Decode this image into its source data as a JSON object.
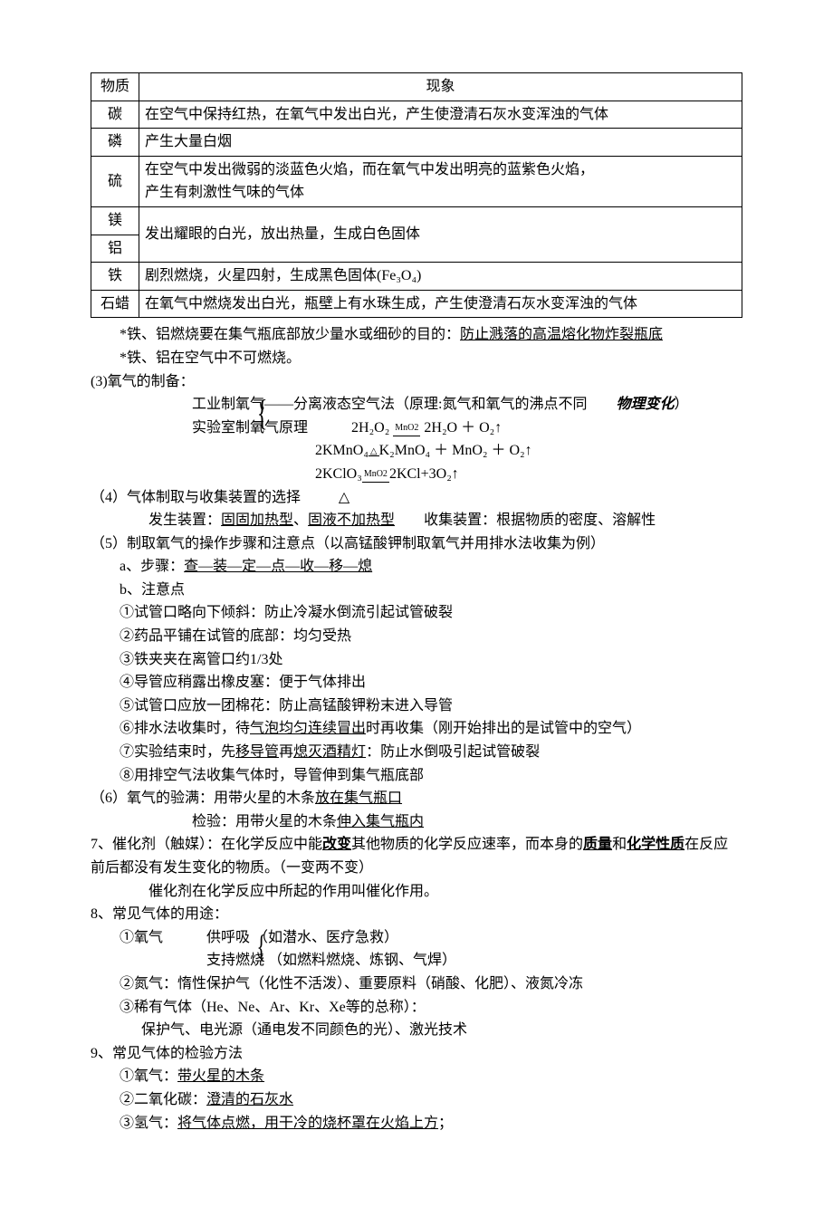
{
  "table": {
    "headers": [
      "物质",
      "现象"
    ],
    "rows": [
      {
        "m": "碳",
        "p": "在空气中保持红热，在氧气中发出白光，产生使澄清石灰水变浑浊的气体"
      },
      {
        "m": "磷",
        "p": "产生大量白烟"
      },
      {
        "m": "硫",
        "p": "在空气中发出微弱的淡蓝色火焰，而在氧气中发出明亮的蓝紫色火焰，\n产生有刺激性气味的气体"
      },
      {
        "m": "镁",
        "p": "发出耀眼的白光，放出热量，生成白色固体",
        "rowspan": 2
      },
      {
        "m": "铝"
      },
      {
        "m": "铁",
        "p": "剧烈燃烧，火星四射，生成黑色固体(Fe₃O₄)"
      },
      {
        "m": "石蜡",
        "p": "在氧气中燃烧发出白光，瓶壁上有水珠生成，产生使澄清石灰水变浑浊的气体"
      }
    ]
  },
  "notes": {
    "n1_pre": "*铁、铝燃烧要在集气瓶底部放少量水或细砂的目的：",
    "n1_u": "防止溅落的高温熔化物炸裂瓶底",
    "n2": "*铁、铝在空气中不可燃烧。"
  },
  "s3": {
    "title": "(3)氧气的制备：",
    "l1a": "工业制氧气——分离液态空气法（原理:氮气和氧气的沸点不同",
    "l1b": "物理变化",
    "l1c": "）",
    "l2a": "实验室制氧气原理",
    "eq1": "2H₂O₂",
    "eq1_cat": "MnO2",
    "eq1_r": " 2H₂O ＋ O₂↑",
    "eq2": "2KMnO₄",
    "eq2_cat": " △ ",
    "eq2_r": "K₂MnO₄ ＋ MnO₂ ＋ O₂↑",
    "eq3": "2KClO₃",
    "eq3_cat": "MnO2",
    "eq3_r": "2KCl+3O₂↑",
    "eq3_below": "△"
  },
  "s4": {
    "title": "（4）气体制取与收集装置的选择",
    "l1a": "发生装置：",
    "l1u1": "固固加热型",
    "l1m": "、",
    "l1u2": "固液不加热型",
    "l1b": "收集装置：根据物质的密度、溶解性"
  },
  "s5": {
    "title": "（5）制取氧气的操作步骤和注意点（以高锰酸钾制取氧气并用排水法收集为例）",
    "a": "a、步骤：",
    "a_u": "查—装—定—点—收—移—熄",
    "b": "b、注意点",
    "i1": "①试管口略向下倾斜：防止冷凝水倒流引起试管破裂",
    "i2": "②药品平铺在试管的底部：均匀受热",
    "i3": "③铁夹夹在离管口约1/3处",
    "i4": "④导管应稍露出橡皮塞：便于气体排出",
    "i5": "⑤试管口应放一团棉花：防止高锰酸钾粉末进入导管",
    "i6a": "⑥排水法收集时，待",
    "i6u": "气泡均匀连续冒出",
    "i6b": "时再收集（刚开始排出的是试管中的空气）",
    "i7a": "⑦实验结束时，先",
    "i7u1": "移导管",
    "i7m": "再",
    "i7u2": "熄灭酒精灯",
    "i7b": "：防止水倒吸引起试管破裂",
    "i8": "⑧用排空气法收集气体时，导管伸到集气瓶底部"
  },
  "s6": {
    "title": "（6）氧气的验满：用带火星的木条",
    "t_u": "放在集气瓶口",
    "c": "检验：用带火星的木条",
    "c_u": "伸入集气瓶内"
  },
  "s7": {
    "t1": "7、催化剂（触媒）：在化学反应中能",
    "u1": "改变",
    "t2": "其他物质的化学反应速率，而本身的",
    "u2": "质量",
    "t3": "和",
    "u3": "化学性质",
    "t4": "在反应前后都没有发生变化的物质。（一变两不变）",
    "l2": "催化剂在化学反应中所起的作用叫催化作用。"
  },
  "s8": {
    "title": "8、常见气体的用途：",
    "o1": "①氧气",
    "o1a": "供呼吸 （如潜水、医疗急救）",
    "o1b": "支持燃烧 （如燃料燃烧、炼钢、气焊）",
    "i2": "②氮气：惰性保护气（化性不活泼）、重要原料（硝酸、化肥）、液氮冷冻",
    "i3": "③稀有气体（He、Ne、Ar、Kr、Xe等的总称）：",
    "i3b": "保护气、电光源（通电发不同颜色的光）、激光技术"
  },
  "s9": {
    "title": "9、常见气体的检验方法",
    "i1a": "①氧气：",
    "i1u": "带火星的木条",
    "i2a": "②二氧化碳：",
    "i2u": "澄清的石灰水",
    "i3a": "③氢气：",
    "i3u": "将气体点燃，用干冷的烧杯罩在火焰上方",
    "i3b": "；"
  }
}
